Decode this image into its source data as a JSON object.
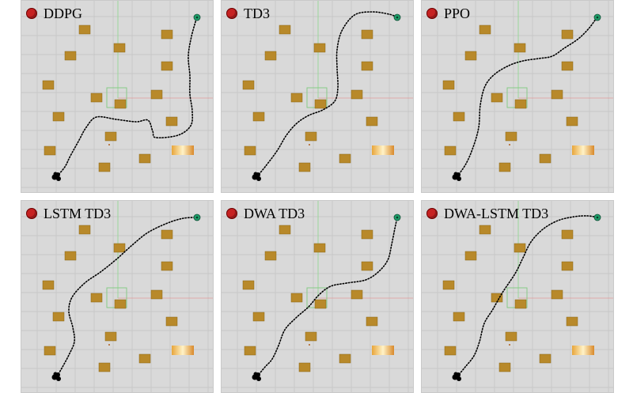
{
  "panels": [
    {
      "title": "DDPG"
    },
    {
      "title": "TD3"
    },
    {
      "title": "PPO"
    },
    {
      "title": "LSTM TD3"
    },
    {
      "title": "DWA TD3"
    },
    {
      "title": "DWA-LSTM TD3"
    }
  ],
  "colors": {
    "background": "#d9d9d9",
    "grid": "#c2c2c2",
    "obstacle": "#b8892a",
    "goal": "#1e9e6a",
    "start": "#000000",
    "path": "#000000",
    "title_marker": "#c62222"
  }
}
